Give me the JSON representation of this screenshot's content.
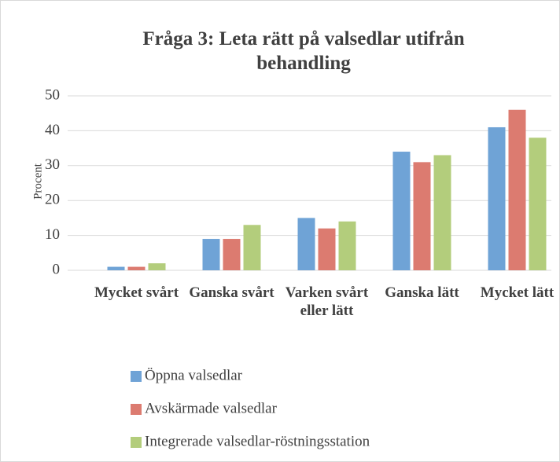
{
  "chart_data": {
    "type": "bar",
    "title": "Fråga 3: Leta rätt på valsedlar utifrån behandling",
    "y_label": "Procent",
    "categories": [
      "Mycket svårt",
      "Ganska svårt",
      "Varken svårt eller lätt",
      "Ganska lätt",
      "Mycket lätt"
    ],
    "series": [
      {
        "name": "Öppna valsedlar",
        "color": "#6fa3d6",
        "values": [
          1,
          9,
          15,
          34,
          41
        ]
      },
      {
        "name": "Avskärmade valsedlar",
        "color": "#dc7b70",
        "values": [
          1,
          9,
          12,
          31,
          46
        ]
      },
      {
        "name": "Integrerade valsedlar-röstningsstation",
        "color": "#b3cd7c",
        "values": [
          2,
          13,
          14,
          33,
          38
        ]
      }
    ],
    "ylim": [
      0,
      50
    ],
    "yticks": [
      0,
      10,
      20,
      30,
      40,
      50
    ],
    "grid": true,
    "legend": "bottom"
  }
}
